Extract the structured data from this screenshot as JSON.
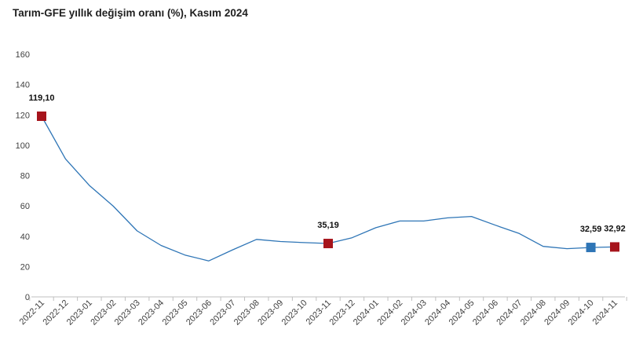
{
  "chart_data": {
    "type": "line",
    "title": "Tarım-GFE yıllık değişim oranı (%), Kasım 2024",
    "xlabel": "",
    "ylabel": "",
    "ylim": [
      0,
      160
    ],
    "yticks": [
      "0",
      "20",
      "40",
      "60",
      "80",
      "100",
      "120",
      "140",
      "160"
    ],
    "grid": false,
    "legend": "none",
    "line_color": "#2e75b6",
    "categories": [
      "2022-11",
      "2022-12",
      "2023-01",
      "2023-02",
      "2023-03",
      "2023-04",
      "2023-05",
      "2023-06",
      "2023-07",
      "2023-08",
      "2023-09",
      "2023-10",
      "2023-11",
      "2023-12",
      "2024-01",
      "2024-02",
      "2024-03",
      "2024-04",
      "2024-05",
      "2024-06",
      "2024-07",
      "2024-08",
      "2024-09",
      "2024-10",
      "2024-11"
    ],
    "series": [
      {
        "values": [
          119.1,
          91.0,
          73.5,
          59.8,
          43.5,
          33.9,
          27.6,
          23.7,
          31.0,
          37.9,
          36.5,
          35.8,
          35.19,
          39.0,
          45.6,
          50.0,
          50.0,
          52.1,
          53.0,
          47.3,
          41.8,
          33.3,
          31.8,
          32.59,
          32.92
        ]
      }
    ],
    "markers": [
      {
        "index": 0,
        "label": "119,10",
        "color": "#a6141c"
      },
      {
        "index": 12,
        "label": "35,19",
        "color": "#a6141c"
      },
      {
        "index": 23,
        "label": "32,59",
        "color": "#2e75b6"
      },
      {
        "index": 24,
        "label": "32,92",
        "color": "#a6141c"
      }
    ]
  }
}
